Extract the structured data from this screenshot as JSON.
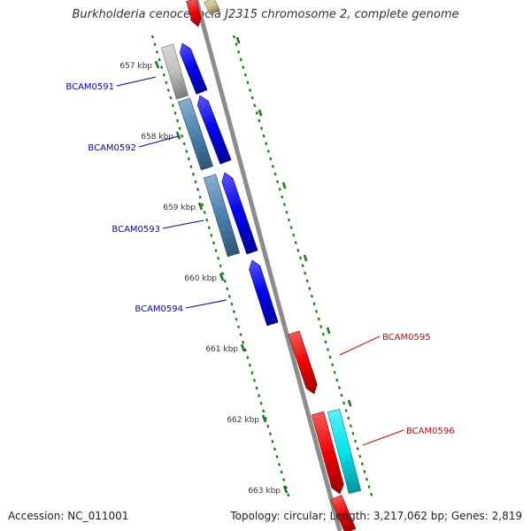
{
  "title": "Burkholderia cenocepacia J2315 chromosome 2, complete genome",
  "accession": "Accession: NC_011001",
  "summary": "Topology: circular; Length: 3,217,062 bp; Genes: 2,819",
  "colors": {
    "backbone": "#8c8c8c",
    "tick": "#1a7a1a",
    "forward_label": "#0000cc",
    "reverse_label": "#dd0000",
    "blue": "#0000ee",
    "steel": "#4a82b0",
    "grey": "#c0c0c0",
    "red": "#ee0000",
    "cyan": "#00e5ee",
    "olive": "#c8c08a"
  },
  "scale_labels": [
    "657 kbp",
    "658 kbp",
    "659 kbp",
    "660 kbp",
    "661 kbp",
    "662 kbp",
    "663 kbp"
  ],
  "gene_labels": [
    {
      "id": "BCAM0591",
      "strand": "forward"
    },
    {
      "id": "BCAM0592",
      "strand": "forward"
    },
    {
      "id": "BCAM0593",
      "strand": "forward"
    },
    {
      "id": "BCAM0594",
      "strand": "forward"
    },
    {
      "id": "BCAM0595",
      "strand": "reverse"
    },
    {
      "id": "BCAM0596",
      "strand": "reverse"
    }
  ]
}
